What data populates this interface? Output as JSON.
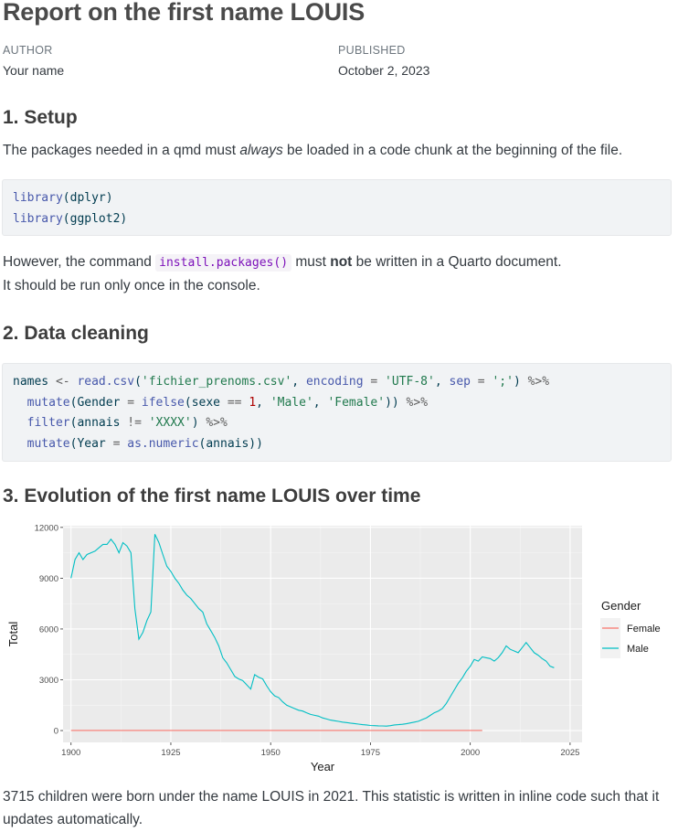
{
  "title": "Report on the first name LOUIS",
  "meta": {
    "author_label": "AUTHOR",
    "author_value": "Your name",
    "published_label": "PUBLISHED",
    "published_value": "October 2, 2023"
  },
  "sections": {
    "setup": {
      "heading": "1. Setup",
      "p1_a": "The packages needed in a qmd must ",
      "p1_em": "always",
      "p1_b": " be loaded in a code chunk at the beginning of the file.",
      "code": {
        "fn1": "library",
        "arg1": "(dplyr)",
        "fn2": "library",
        "arg2": "(ggplot2)"
      },
      "p2_a": "However, the command ",
      "p2_code": "install.packages()",
      "p2_b": " must ",
      "p2_strong": "not",
      "p2_c": " be written in a Quarto document.",
      "p3": "It should be run only once in the console."
    },
    "cleaning": {
      "heading": "2. Data cleaning",
      "code": {
        "l1_a": "names ",
        "l1_op1": "<-",
        "l1_fn": " read.csv",
        "l1_b": "(",
        "l1_s1": "'fichier_prenoms.csv'",
        "l1_c": ", ",
        "l1_enc": "encoding",
        "l1_eq1": " = ",
        "l1_s2": "'UTF-8'",
        "l1_d": ", ",
        "l1_sep": "sep",
        "l1_eq2": " = ",
        "l1_s3": "';'",
        "l1_e": ") ",
        "l1_pipe": "%>%",
        "l2_fn": "mutate",
        "l2_a": "(Gender ",
        "l2_eq": "=",
        "l2_fn2": " ifelse",
        "l2_b": "(sexe ",
        "l2_op": "==",
        "l2_num": " 1",
        "l2_c": ", ",
        "l2_s1": "'Male'",
        "l2_d": ", ",
        "l2_s2": "'Female'",
        "l2_e": ")) ",
        "l2_pipe": "%>%",
        "l3_fn": "filter",
        "l3_a": "(annais ",
        "l3_op": "!=",
        "l3_s": " 'XXXX'",
        "l3_b": ") ",
        "l3_pipe": "%>%",
        "l4_fn": "mutate",
        "l4_a": "(Year ",
        "l4_eq": "=",
        "l4_fn2": " as.numeric",
        "l4_b": "(annais))"
      }
    },
    "evolution": {
      "heading": "3. Evolution of the first name LOUIS over time",
      "p1": "3715 children were born under the name LOUIS in 2021. This statistic is written in inline code such that it",
      "p2": "updates automatically."
    }
  },
  "chart_data": {
    "type": "line",
    "xlabel": "Year",
    "ylabel": "Total",
    "xlim": [
      1898,
      2028
    ],
    "ylim": [
      -700,
      12100
    ],
    "xticks": [
      1900,
      1925,
      1950,
      1975,
      2000,
      2025
    ],
    "yticks": [
      0,
      3000,
      6000,
      9000,
      12000
    ],
    "ytick_labels": [
      "0",
      "3000",
      "6000",
      "9000",
      "12000"
    ],
    "grid": true,
    "legend_title": "Gender",
    "legend_position": "right",
    "colors": {
      "Female": "#F8766D",
      "Male": "#00BFC4",
      "panel": "#EBEBEB"
    },
    "series": [
      {
        "name": "Female",
        "x": [
          1900,
          1920,
          1940,
          1960,
          1980,
          2003
        ],
        "y": [
          5,
          5,
          5,
          5,
          5,
          5
        ]
      },
      {
        "name": "Male",
        "x": [
          1900,
          1901,
          1902,
          1903,
          1904,
          1905,
          1906,
          1907,
          1908,
          1909,
          1910,
          1911,
          1912,
          1913,
          1914,
          1915,
          1916,
          1917,
          1918,
          1919,
          1920,
          1921,
          1922,
          1923,
          1924,
          1925,
          1926,
          1927,
          1928,
          1929,
          1930,
          1931,
          1932,
          1933,
          1934,
          1935,
          1936,
          1937,
          1938,
          1939,
          1940,
          1941,
          1942,
          1943,
          1944,
          1945,
          1946,
          1947,
          1948,
          1949,
          1950,
          1951,
          1952,
          1953,
          1954,
          1955,
          1956,
          1957,
          1958,
          1959,
          1960,
          1961,
          1962,
          1963,
          1964,
          1965,
          1966,
          1967,
          1968,
          1969,
          1970,
          1971,
          1972,
          1973,
          1974,
          1975,
          1976,
          1977,
          1978,
          1979,
          1980,
          1981,
          1982,
          1983,
          1984,
          1985,
          1986,
          1987,
          1988,
          1989,
          1990,
          1991,
          1992,
          1993,
          1994,
          1995,
          1996,
          1997,
          1998,
          1999,
          2000,
          2001,
          2002,
          2003,
          2004,
          2005,
          2006,
          2007,
          2008,
          2009,
          2010,
          2011,
          2012,
          2013,
          2014,
          2015,
          2016,
          2017,
          2018,
          2019,
          2020,
          2021
        ],
        "y": [
          9000,
          10100,
          10500,
          10100,
          10400,
          10500,
          10600,
          10800,
          11000,
          11000,
          11300,
          11000,
          10500,
          11100,
          10900,
          10500,
          7200,
          5400,
          5800,
          6500,
          7000,
          11600,
          11100,
          10400,
          9700,
          9400,
          9000,
          8700,
          8300,
          8000,
          7800,
          7500,
          7200,
          7000,
          6300,
          5900,
          5500,
          5000,
          4300,
          4000,
          3600,
          3200,
          3050,
          2950,
          2700,
          2450,
          3300,
          3150,
          3050,
          2650,
          2300,
          2050,
          1950,
          1700,
          1500,
          1400,
          1300,
          1200,
          1150,
          1050,
          950,
          900,
          850,
          750,
          680,
          620,
          580,
          540,
          500,
          470,
          440,
          410,
          380,
          350,
          330,
          300,
          290,
          280,
          270,
          260,
          290,
          330,
          350,
          370,
          400,
          450,
          500,
          550,
          650,
          750,
          900,
          1050,
          1150,
          1300,
          1600,
          2000,
          2400,
          2800,
          3100,
          3500,
          3800,
          4200,
          4100,
          4350,
          4300,
          4250,
          4100,
          4300,
          4600,
          5000,
          4800,
          4700,
          4600,
          4900,
          5200,
          4900,
          4600,
          4450,
          4250,
          4100,
          3800,
          3715
        ]
      }
    ]
  }
}
